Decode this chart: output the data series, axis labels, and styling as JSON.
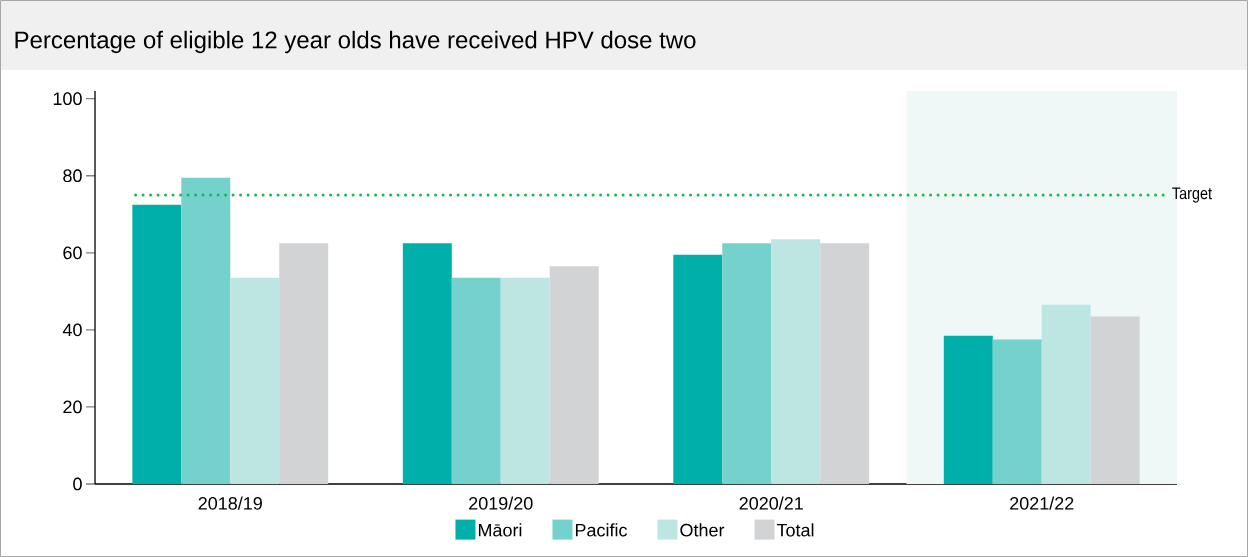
{
  "chart_data": {
    "type": "bar",
    "title": "Percentage of eligible 12 year olds have received HPV dose two",
    "categories": [
      "2018/19",
      "2019/20",
      "2020/21",
      "2021/22"
    ],
    "series": [
      {
        "name": "Māori",
        "color": "#00afa9",
        "values": [
          72.5,
          62.5,
          59.5,
          38.5
        ]
      },
      {
        "name": "Pacific",
        "color": "#75d1cb",
        "values": [
          79.5,
          53.5,
          62.5,
          37.5
        ]
      },
      {
        "name": "Other",
        "color": "#bde6e3",
        "values": [
          53.5,
          53.5,
          63.5,
          46.5
        ]
      },
      {
        "name": "Total",
        "color": "#d1d3d4",
        "values": [
          62.5,
          56.5,
          62.5,
          43.5
        ]
      }
    ],
    "ylim": [
      0,
      102
    ],
    "yticks": [
      0,
      20,
      40,
      60,
      80,
      100
    ],
    "ref_lines": [
      {
        "axis": "y",
        "value": 75,
        "label": "Target",
        "color": "#1fb550",
        "line_style": "dotted"
      }
    ],
    "bands": [
      {
        "axis": "x",
        "from": "2021/22",
        "to": "2021/22",
        "color": "#eff8f7"
      }
    ],
    "legend": "bottom",
    "grid": false
  }
}
